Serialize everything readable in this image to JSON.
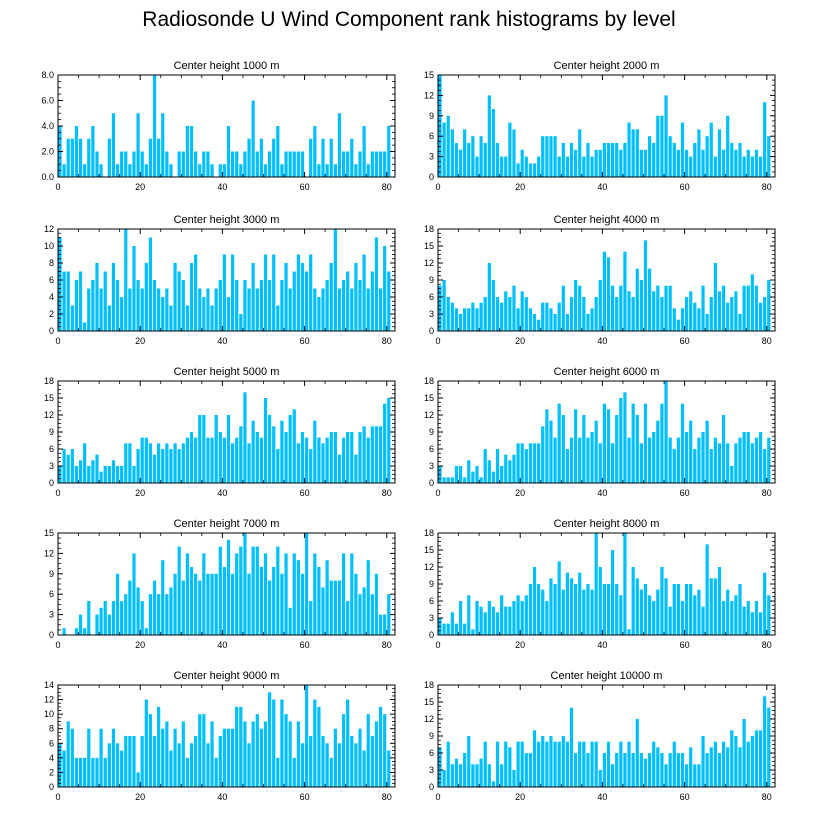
{
  "title": "Radiosonde U Wind Component rank histograms by level",
  "colors": {
    "bar": "#00bfff",
    "axis": "#000000",
    "background": "#ffffff"
  },
  "chart_data": [
    {
      "type": "bar",
      "title": "Center height 1000 m",
      "xlim": [
        0,
        82
      ],
      "ylim": [
        0,
        8
      ],
      "xticks": [
        0,
        20,
        40,
        60,
        80
      ],
      "yticks": [
        0,
        2,
        4,
        6,
        8
      ],
      "ytick_labels": [
        "0.0",
        "2.0",
        "4.0",
        "6.0",
        "8.0"
      ],
      "values": [
        4,
        1,
        3,
        3,
        4,
        3,
        1,
        3,
        4,
        2,
        1,
        0,
        3,
        5,
        1,
        2,
        2,
        1,
        2,
        5,
        2,
        1,
        3,
        8,
        3,
        5,
        2,
        1,
        0,
        2,
        2,
        4,
        4,
        2,
        1,
        2,
        2,
        1,
        0,
        1,
        1,
        4,
        2,
        2,
        1,
        2,
        3,
        6,
        2,
        3,
        1,
        2,
        3,
        4,
        1,
        2,
        2,
        2,
        2,
        2,
        0,
        3,
        4,
        1,
        3,
        1,
        3,
        1,
        5,
        2,
        2,
        3,
        1,
        2,
        4,
        1,
        2,
        2,
        2,
        2,
        4
      ]
    },
    {
      "type": "bar",
      "title": "Center height 2000 m",
      "xlim": [
        0,
        82
      ],
      "ylim": [
        0,
        15
      ],
      "xticks": [
        0,
        20,
        40,
        60,
        80
      ],
      "yticks": [
        0,
        3,
        6,
        9,
        12,
        15
      ],
      "ytick_labels": [
        "0",
        "3",
        "6",
        "9",
        "12",
        "15"
      ],
      "values": [
        15,
        8,
        9,
        7,
        5,
        4,
        7,
        5,
        6,
        3,
        6,
        5,
        12,
        10,
        5,
        3,
        3,
        8,
        7,
        2,
        4,
        3,
        2,
        2,
        3,
        6,
        6,
        6,
        6,
        3,
        5,
        3,
        5,
        4,
        7,
        3,
        5,
        3,
        4,
        4,
        5,
        5,
        5,
        5,
        4,
        5,
        8,
        7,
        7,
        4,
        4,
        6,
        5,
        9,
        9,
        12,
        6,
        5,
        4,
        8,
        4,
        3,
        5,
        7,
        4,
        6,
        8,
        3,
        7,
        4,
        9,
        5,
        4,
        5,
        3,
        4,
        3,
        4,
        3,
        11,
        6
      ]
    },
    {
      "type": "bar",
      "title": "Center height 3000 m",
      "xlim": [
        0,
        82
      ],
      "ylim": [
        0,
        12
      ],
      "xticks": [
        0,
        20,
        40,
        60,
        80
      ],
      "yticks": [
        0,
        2,
        4,
        6,
        8,
        10,
        12
      ],
      "ytick_labels": [
        "0",
        "2",
        "4",
        "6",
        "8",
        "10",
        "12"
      ],
      "values": [
        11,
        7,
        7,
        3,
        6,
        7,
        1,
        5,
        6,
        8,
        5,
        7,
        3,
        8,
        6,
        4,
        12,
        5,
        10,
        6,
        5,
        8,
        11,
        6,
        5,
        4,
        5,
        3,
        8,
        7,
        6,
        3,
        8,
        9,
        5,
        4,
        5,
        3,
        5,
        6,
        9,
        4,
        9,
        6,
        2,
        6,
        5,
        8,
        5,
        6,
        9,
        6,
        9,
        3,
        6,
        8,
        5,
        7,
        9,
        8,
        7,
        9,
        5,
        4,
        5,
        6,
        8,
        12,
        5,
        6,
        7,
        5,
        8,
        6,
        9,
        5,
        7,
        11,
        5,
        10,
        7
      ]
    },
    {
      "type": "bar",
      "title": "Center height 4000 m",
      "xlim": [
        0,
        82
      ],
      "ylim": [
        0,
        18
      ],
      "xticks": [
        0,
        20,
        40,
        60,
        80
      ],
      "yticks": [
        0,
        3,
        6,
        9,
        12,
        15,
        18
      ],
      "ytick_labels": [
        "0",
        "3",
        "6",
        "9",
        "12",
        "15",
        "18"
      ],
      "values": [
        8,
        9,
        6,
        5,
        4,
        3,
        4,
        4,
        5,
        4,
        5,
        6,
        12,
        9,
        6,
        5,
        7,
        6,
        8,
        4,
        7,
        6,
        4,
        3,
        2,
        5,
        5,
        4,
        3,
        5,
        8,
        3,
        6,
        9,
        8,
        6,
        3,
        4,
        6,
        9,
        14,
        13,
        8,
        6,
        8,
        14,
        7,
        6,
        11,
        9,
        16,
        11,
        7,
        8,
        6,
        8,
        8,
        4,
        2,
        4,
        6,
        7,
        5,
        4,
        8,
        3,
        6,
        12,
        7,
        8,
        5,
        6,
        7,
        3,
        8,
        8,
        10,
        8,
        5,
        6,
        9
      ]
    },
    {
      "type": "bar",
      "title": "Center height 5000 m",
      "xlim": [
        0,
        82
      ],
      "ylim": [
        0,
        18
      ],
      "xticks": [
        0,
        20,
        40,
        60,
        80
      ],
      "yticks": [
        0,
        3,
        6,
        9,
        12,
        15,
        18
      ],
      "ytick_labels": [
        "0",
        "3",
        "6",
        "9",
        "12",
        "15",
        "18"
      ],
      "values": [
        3,
        6,
        5,
        6,
        3,
        4,
        7,
        3,
        4,
        5,
        2,
        3,
        3,
        4,
        3,
        3,
        7,
        7,
        3,
        6,
        8,
        8,
        7,
        5,
        7,
        6,
        7,
        6,
        7,
        6,
        7,
        8,
        9,
        8,
        12,
        12,
        8,
        8,
        12,
        9,
        8,
        12,
        7,
        8,
        10,
        16,
        7,
        11,
        9,
        8,
        15,
        12,
        10,
        6,
        11,
        9,
        12,
        13,
        7,
        9,
        8,
        6,
        11,
        8,
        7,
        8,
        9,
        9,
        5,
        8,
        9,
        9,
        5,
        9,
        10,
        8,
        10,
        10,
        10,
        14,
        15
      ]
    },
    {
      "type": "bar",
      "title": "Center height 6000 m",
      "xlim": [
        0,
        82
      ],
      "ylim": [
        0,
        18
      ],
      "xticks": [
        0,
        20,
        40,
        60,
        80
      ],
      "yticks": [
        0,
        3,
        6,
        9,
        12,
        15,
        18
      ],
      "ytick_labels": [
        "0",
        "3",
        "6",
        "9",
        "12",
        "15",
        "18"
      ],
      "values": [
        3,
        1,
        1,
        1,
        3,
        3,
        1,
        4,
        2,
        3,
        1,
        6,
        4,
        2,
        6,
        3,
        5,
        4,
        5,
        7,
        7,
        6,
        7,
        7,
        7,
        10,
        13,
        11,
        8,
        14,
        12,
        6,
        8,
        13,
        8,
        12,
        8,
        9,
        11,
        7,
        14,
        13,
        7,
        12,
        15,
        16,
        8,
        14,
        12,
        7,
        14,
        8,
        9,
        11,
        14,
        18,
        8,
        6,
        8,
        14,
        9,
        11,
        6,
        8,
        9,
        11,
        6,
        8,
        7,
        12,
        7,
        3,
        7,
        8,
        9,
        9,
        7,
        8,
        9,
        6,
        8
      ]
    },
    {
      "type": "bar",
      "title": "Center height 7000 m",
      "xlim": [
        0,
        82
      ],
      "ylim": [
        0,
        15
      ],
      "xticks": [
        0,
        20,
        40,
        60,
        80
      ],
      "yticks": [
        0,
        3,
        6,
        9,
        12,
        15
      ],
      "ytick_labels": [
        "0",
        "3",
        "6",
        "9",
        "12",
        "15"
      ],
      "values": [
        0,
        1,
        0,
        0,
        1,
        3,
        1,
        5,
        0,
        3,
        4,
        5,
        3,
        5,
        9,
        5,
        6,
        8,
        12,
        7,
        5,
        1,
        6,
        8,
        6,
        11,
        6,
        7,
        9,
        13,
        8,
        12,
        10,
        9,
        8,
        12,
        9,
        9,
        9,
        13,
        10,
        14,
        9,
        12,
        13,
        15,
        9,
        13,
        13,
        10,
        12,
        8,
        10,
        13,
        9,
        12,
        4,
        12,
        11,
        9,
        15,
        5,
        12,
        10,
        7,
        11,
        8,
        8,
        8,
        12,
        5,
        12,
        9,
        6,
        7,
        11,
        6,
        9,
        3,
        3,
        6
      ]
    },
    {
      "type": "bar",
      "title": "Center height 8000 m",
      "xlim": [
        0,
        82
      ],
      "ylim": [
        0,
        18
      ],
      "xticks": [
        0,
        20,
        40,
        60,
        80
      ],
      "yticks": [
        0,
        3,
        6,
        9,
        12,
        15,
        18
      ],
      "ytick_labels": [
        "0",
        "3",
        "6",
        "9",
        "12",
        "15",
        "18"
      ],
      "values": [
        3,
        2,
        2,
        4,
        2,
        6,
        2,
        7,
        1,
        6,
        5,
        4,
        6,
        5,
        4,
        7,
        5,
        5,
        6,
        7,
        6,
        7,
        9,
        12,
        9,
        8,
        6,
        10,
        9,
        13,
        8,
        11,
        10,
        9,
        11,
        8,
        9,
        8,
        18,
        12,
        9,
        9,
        15,
        9,
        7,
        18,
        1,
        12,
        10,
        8,
        9,
        7,
        6,
        8,
        12,
        10,
        5,
        9,
        9,
        6,
        9,
        9,
        7,
        8,
        5,
        16,
        10,
        10,
        12,
        6,
        8,
        6,
        7,
        9,
        5,
        6,
        4,
        6,
        4,
        11,
        7
      ]
    },
    {
      "type": "bar",
      "title": "Center height 9000 m",
      "xlim": [
        0,
        82
      ],
      "ylim": [
        0,
        14
      ],
      "xticks": [
        0,
        20,
        40,
        60,
        80
      ],
      "yticks": [
        0,
        2,
        4,
        6,
        8,
        10,
        12,
        14
      ],
      "ytick_labels": [
        "0",
        "2",
        "4",
        "6",
        "8",
        "10",
        "12",
        "14"
      ],
      "values": [
        6,
        5,
        9,
        8,
        4,
        4,
        4,
        8,
        4,
        4,
        8,
        4,
        6,
        8,
        6,
        5,
        7,
        7,
        7,
        2,
        7,
        12,
        10,
        7,
        11,
        8,
        9,
        5,
        8,
        6,
        9,
        4,
        6,
        7,
        10,
        10,
        6,
        9,
        4,
        7,
        8,
        8,
        8,
        11,
        11,
        9,
        6,
        9,
        10,
        8,
        9,
        13,
        12,
        4,
        12,
        10,
        9,
        4,
        9,
        6,
        14,
        7,
        12,
        11,
        7,
        6,
        4,
        8,
        6,
        10,
        12,
        7,
        6,
        8,
        5,
        10,
        7,
        9,
        11,
        10,
        5
      ]
    },
    {
      "type": "bar",
      "title": "Center height 10000 m",
      "xlim": [
        0,
        82
      ],
      "ylim": [
        0,
        18
      ],
      "xticks": [
        0,
        20,
        40,
        60,
        80
      ],
      "yticks": [
        0,
        3,
        6,
        9,
        12,
        15,
        18
      ],
      "ytick_labels": [
        "0",
        "3",
        "6",
        "9",
        "12",
        "15",
        "18"
      ],
      "values": [
        7,
        3,
        8,
        4,
        5,
        4,
        6,
        9,
        4,
        4,
        5,
        8,
        4,
        1,
        8,
        4,
        8,
        7,
        3,
        8,
        8,
        6,
        6,
        10,
        8,
        9,
        8,
        9,
        8,
        8,
        9,
        8,
        14,
        6,
        8,
        8,
        6,
        8,
        8,
        3,
        6,
        8,
        4,
        6,
        8,
        6,
        8,
        6,
        12,
        6,
        5,
        6,
        8,
        7,
        6,
        4,
        6,
        8,
        6,
        6,
        4,
        7,
        4,
        4,
        9,
        6,
        7,
        8,
        6,
        8,
        7,
        10,
        9,
        7,
        12,
        8,
        9,
        10,
        10,
        16,
        14
      ]
    }
  ]
}
